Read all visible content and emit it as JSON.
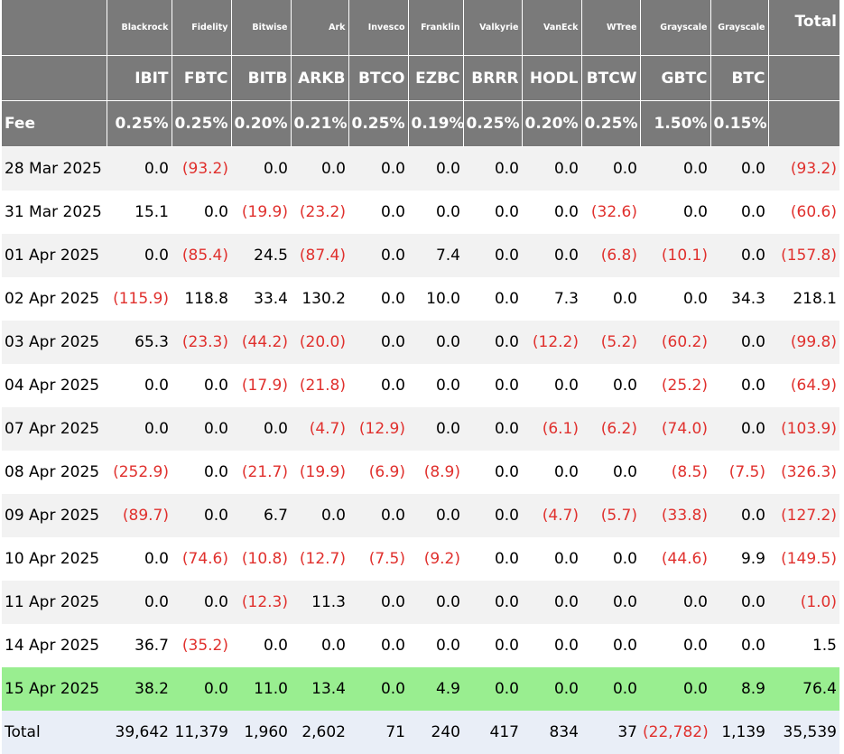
{
  "header": {
    "issuers": [
      "Blackrock",
      "Fidelity",
      "Bitwise",
      "Ark",
      "Invesco",
      "Franklin",
      "Valkyrie",
      "VanEck",
      "WTree",
      "Grayscale",
      "Grayscale"
    ],
    "total_label": "Total",
    "tickers": [
      "IBIT",
      "FBTC",
      "BITB",
      "ARKB",
      "BTCO",
      "EZBC",
      "BRRR",
      "HODL",
      "BTCW",
      "GBTC",
      "BTC"
    ],
    "fee_label": "Fee",
    "fees": [
      "0.25%",
      "0.25%",
      "0.20%",
      "0.21%",
      "0.25%",
      "0.19%",
      "0.25%",
      "0.20%",
      "0.25%",
      "1.50%",
      "0.15%"
    ]
  },
  "rows": [
    {
      "date": "28 Mar 2025",
      "values": [
        "0.0",
        "(93.2)",
        "0.0",
        "0.0",
        "0.0",
        "0.0",
        "0.0",
        "0.0",
        "0.0",
        "0.0",
        "0.0",
        "(93.2)"
      ]
    },
    {
      "date": "31 Mar 2025",
      "values": [
        "15.1",
        "0.0",
        "(19.9)",
        "(23.2)",
        "0.0",
        "0.0",
        "0.0",
        "0.0",
        "(32.6)",
        "0.0",
        "0.0",
        "(60.6)"
      ]
    },
    {
      "date": "01 Apr 2025",
      "values": [
        "0.0",
        "(85.4)",
        "24.5",
        "(87.4)",
        "0.0",
        "7.4",
        "0.0",
        "0.0",
        "(6.8)",
        "(10.1)",
        "0.0",
        "(157.8)"
      ]
    },
    {
      "date": "02 Apr 2025",
      "values": [
        "(115.9)",
        "118.8",
        "33.4",
        "130.2",
        "0.0",
        "10.0",
        "0.0",
        "7.3",
        "0.0",
        "0.0",
        "34.3",
        "218.1"
      ]
    },
    {
      "date": "03 Apr 2025",
      "values": [
        "65.3",
        "(23.3)",
        "(44.2)",
        "(20.0)",
        "0.0",
        "0.0",
        "0.0",
        "(12.2)",
        "(5.2)",
        "(60.2)",
        "0.0",
        "(99.8)"
      ]
    },
    {
      "date": "04 Apr 2025",
      "values": [
        "0.0",
        "0.0",
        "(17.9)",
        "(21.8)",
        "0.0",
        "0.0",
        "0.0",
        "0.0",
        "0.0",
        "(25.2)",
        "0.0",
        "(64.9)"
      ]
    },
    {
      "date": "07 Apr 2025",
      "values": [
        "0.0",
        "0.0",
        "0.0",
        "(4.7)",
        "(12.9)",
        "0.0",
        "0.0",
        "(6.1)",
        "(6.2)",
        "(74.0)",
        "0.0",
        "(103.9)"
      ]
    },
    {
      "date": "08 Apr 2025",
      "values": [
        "(252.9)",
        "0.0",
        "(21.7)",
        "(19.9)",
        "(6.9)",
        "(8.9)",
        "0.0",
        "0.0",
        "0.0",
        "(8.5)",
        "(7.5)",
        "(326.3)"
      ]
    },
    {
      "date": "09 Apr 2025",
      "values": [
        "(89.7)",
        "0.0",
        "6.7",
        "0.0",
        "0.0",
        "0.0",
        "0.0",
        "(4.7)",
        "(5.7)",
        "(33.8)",
        "0.0",
        "(127.2)"
      ]
    },
    {
      "date": "10 Apr 2025",
      "values": [
        "0.0",
        "(74.6)",
        "(10.8)",
        "(12.7)",
        "(7.5)",
        "(9.2)",
        "0.0",
        "0.0",
        "0.0",
        "(44.6)",
        "9.9",
        "(149.5)"
      ]
    },
    {
      "date": "11 Apr 2025",
      "values": [
        "0.0",
        "0.0",
        "(12.3)",
        "11.3",
        "0.0",
        "0.0",
        "0.0",
        "0.0",
        "0.0",
        "0.0",
        "0.0",
        "(1.0)"
      ]
    },
    {
      "date": "14 Apr 2025",
      "values": [
        "36.7",
        "(35.2)",
        "0.0",
        "0.0",
        "0.0",
        "0.0",
        "0.0",
        "0.0",
        "0.0",
        "0.0",
        "0.0",
        "1.5"
      ]
    },
    {
      "date": "15 Apr 2025",
      "values": [
        "38.2",
        "0.0",
        "11.0",
        "13.4",
        "0.0",
        "4.9",
        "0.0",
        "0.0",
        "0.0",
        "0.0",
        "8.9",
        "76.4"
      ],
      "highlighted": true
    }
  ],
  "totals": {
    "label": "Total",
    "values": [
      "39,642",
      "11,379",
      "1,960",
      "2,602",
      "71",
      "240",
      "417",
      "834",
      "37",
      "(22,782)",
      "1,139",
      "35,539"
    ]
  },
  "colors": {
    "header_bg": "#7a7a7a",
    "header_text": "#ffffff",
    "negative": "#e0302d",
    "highlight_row": "#99ee90",
    "total_row": "#e9eef7",
    "stripe_row": "#f2f2f2"
  }
}
